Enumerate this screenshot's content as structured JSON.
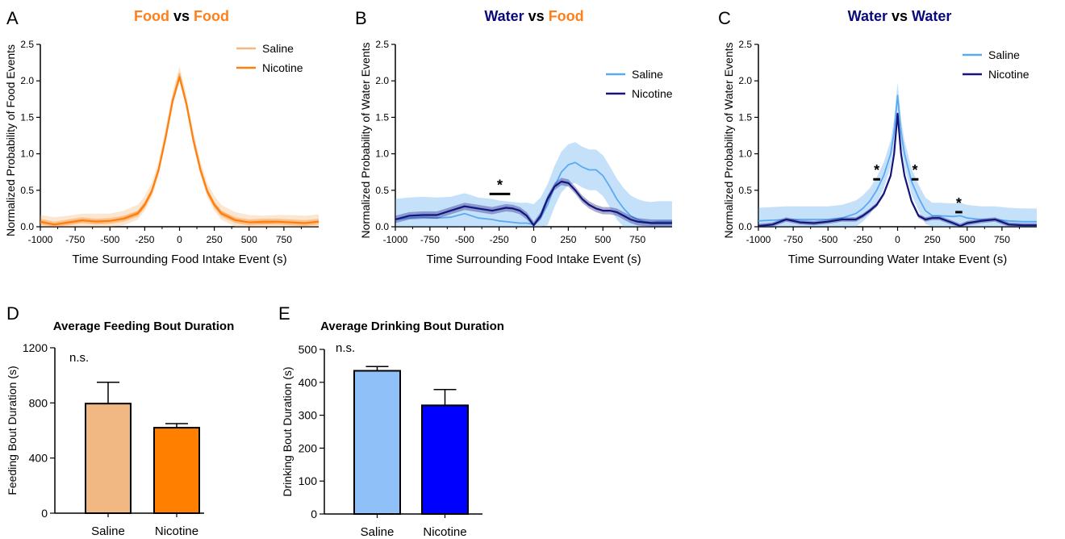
{
  "colors": {
    "food_saline": "#f4b77e",
    "food_nicotine": "#ff7f0e",
    "water_saline": "#5aa9f2",
    "water_nicotine": "#14147a",
    "title_water": "#0a0a7a",
    "title_food": "#ff7f1a",
    "bar_saline_food": "#f2b883",
    "bar_nicotine_food": "#ff7f00",
    "bar_saline_water": "#8fc0f7",
    "bar_nicotine_water": "#0000ff"
  },
  "chart_data": [
    {
      "panel": "A",
      "type": "line",
      "title_parts": [
        {
          "text": "Food",
          "color": "title_food"
        },
        {
          "text": " vs ",
          "color": "black"
        },
        {
          "text": "Food",
          "color": "title_food"
        }
      ],
      "xlabel": "Time Surrounding Food Intake Event (s)",
      "ylabel": "Normalized Probability of Food Events",
      "xlim": [
        -1000,
        1000
      ],
      "ylim": [
        0,
        2.5
      ],
      "xticks": [
        "-1000",
        "-750",
        "-500",
        "-250",
        "0",
        "250",
        "500",
        "750"
      ],
      "yticks": [
        "0.0",
        "0.5",
        "1.0",
        "1.5",
        "2.0",
        "2.5"
      ],
      "legend": "top-right",
      "series": [
        {
          "name": "Saline",
          "color": "food_saline",
          "error": 0.1,
          "x": [
            -1000,
            -900,
            -800,
            -700,
            -600,
            -500,
            -400,
            -300,
            -250,
            -200,
            -150,
            -100,
            -50,
            0,
            50,
            100,
            150,
            200,
            250,
            300,
            400,
            500,
            600,
            700,
            800,
            900,
            1000
          ],
          "y": [
            0.06,
            0.03,
            0.05,
            0.08,
            0.08,
            0.08,
            0.12,
            0.2,
            0.32,
            0.5,
            0.8,
            1.25,
            1.75,
            2.1,
            1.7,
            1.2,
            0.8,
            0.5,
            0.32,
            0.2,
            0.1,
            0.06,
            0.05,
            0.06,
            0.06,
            0.05,
            0.07
          ]
        },
        {
          "name": "Nicotine",
          "color": "food_nicotine",
          "error": 0.04,
          "x": [
            -1000,
            -900,
            -800,
            -700,
            -600,
            -500,
            -400,
            -300,
            -250,
            -200,
            -150,
            -100,
            -50,
            0,
            50,
            100,
            150,
            200,
            250,
            300,
            400,
            500,
            600,
            700,
            800,
            900,
            1000
          ],
          "y": [
            0.07,
            0.03,
            0.06,
            0.09,
            0.07,
            0.08,
            0.11,
            0.18,
            0.3,
            0.48,
            0.78,
            1.22,
            1.72,
            2.05,
            1.68,
            1.18,
            0.78,
            0.48,
            0.3,
            0.18,
            0.09,
            0.06,
            0.07,
            0.07,
            0.06,
            0.05,
            0.07
          ]
        }
      ],
      "annotations": []
    },
    {
      "panel": "B",
      "type": "line",
      "title_parts": [
        {
          "text": "Water",
          "color": "title_water"
        },
        {
          "text": " vs ",
          "color": "black"
        },
        {
          "text": "Food",
          "color": "title_food"
        }
      ],
      "xlabel": "Time Surrounding Food Intake Event (s)",
      "ylabel": "Normalized Probability of Water Events",
      "xlim": [
        -1000,
        1000
      ],
      "ylim": [
        0,
        2.5
      ],
      "xticks": [
        "-1000",
        "-750",
        "-500",
        "-250",
        "0",
        "250",
        "500",
        "750"
      ],
      "yticks": [
        "0.0",
        "0.5",
        "1.0",
        "1.5",
        "2.0",
        "2.5"
      ],
      "legend": "top-right",
      "series": [
        {
          "name": "Saline",
          "color": "water_saline",
          "error": 0.28,
          "x": [
            -1000,
            -900,
            -800,
            -700,
            -600,
            -500,
            -400,
            -300,
            -250,
            -200,
            -150,
            -100,
            -50,
            0,
            50,
            100,
            150,
            200,
            250,
            300,
            350,
            400,
            450,
            500,
            550,
            600,
            650,
            700,
            750,
            800,
            850,
            900,
            1000
          ],
          "y": [
            0.1,
            0.12,
            0.13,
            0.12,
            0.13,
            0.18,
            0.12,
            0.1,
            0.08,
            0.07,
            0.06,
            0.05,
            0.05,
            0.03,
            0.12,
            0.3,
            0.55,
            0.75,
            0.85,
            0.88,
            0.82,
            0.78,
            0.78,
            0.7,
            0.55,
            0.38,
            0.25,
            0.15,
            0.1,
            0.07,
            0.06,
            0.07,
            0.07
          ]
        },
        {
          "name": "Nicotine",
          "color": "water_nicotine",
          "error": 0.05,
          "x": [
            -1000,
            -900,
            -800,
            -700,
            -600,
            -500,
            -400,
            -300,
            -250,
            -200,
            -150,
            -100,
            -50,
            0,
            50,
            100,
            150,
            200,
            250,
            300,
            350,
            400,
            450,
            500,
            550,
            600,
            650,
            700,
            750,
            800,
            850,
            900,
            1000
          ],
          "y": [
            0.1,
            0.15,
            0.16,
            0.16,
            0.22,
            0.28,
            0.25,
            0.22,
            0.24,
            0.26,
            0.25,
            0.22,
            0.15,
            0.02,
            0.15,
            0.38,
            0.55,
            0.62,
            0.6,
            0.5,
            0.38,
            0.3,
            0.25,
            0.22,
            0.22,
            0.2,
            0.15,
            0.1,
            0.07,
            0.06,
            0.05,
            0.05,
            0.05
          ]
        }
      ],
      "annotations": [
        {
          "text": "*",
          "x": -245,
          "y": 0.55,
          "bar": [
            -320,
            -170
          ]
        }
      ]
    },
    {
      "panel": "C",
      "type": "line",
      "title_parts": [
        {
          "text": "Water",
          "color": "title_water"
        },
        {
          "text": " vs ",
          "color": "black"
        },
        {
          "text": "Water",
          "color": "title_water"
        }
      ],
      "xlabel": "Time Surrounding Water Intake Event (s)",
      "ylabel": "Normalized Probability of Water Events",
      "xlim": [
        -1000,
        1000
      ],
      "ylim": [
        0,
        2.5
      ],
      "xticks": [
        "-1000",
        "-750",
        "-500",
        "-250",
        "0",
        "250",
        "500",
        "750"
      ],
      "yticks": [
        "0.0",
        "0.5",
        "1.0",
        "1.5",
        "2.0",
        "2.5"
      ],
      "legend": "top-right",
      "series": [
        {
          "name": "Saline",
          "color": "water_saline",
          "error": 0.18,
          "x": [
            -1000,
            -900,
            -800,
            -700,
            -600,
            -500,
            -400,
            -300,
            -250,
            -200,
            -150,
            -100,
            -50,
            -25,
            0,
            25,
            50,
            100,
            150,
            200,
            250,
            300,
            400,
            450,
            500,
            600,
            700,
            800,
            900,
            1000
          ],
          "y": [
            0.08,
            0.09,
            0.1,
            0.1,
            0.1,
            0.1,
            0.12,
            0.18,
            0.25,
            0.35,
            0.5,
            0.7,
            1.0,
            1.3,
            1.8,
            1.3,
            1.0,
            0.62,
            0.4,
            0.22,
            0.15,
            0.15,
            0.14,
            0.15,
            0.12,
            0.1,
            0.1,
            0.08,
            0.07,
            0.07
          ]
        },
        {
          "name": "Nicotine",
          "color": "water_nicotine",
          "error": 0.03,
          "x": [
            -1000,
            -900,
            -800,
            -700,
            -600,
            -500,
            -400,
            -300,
            -250,
            -200,
            -150,
            -100,
            -50,
            -25,
            0,
            25,
            50,
            100,
            150,
            200,
            250,
            300,
            400,
            450,
            500,
            600,
            700,
            800,
            900,
            1000
          ],
          "y": [
            0.01,
            0.03,
            0.1,
            0.06,
            0.05,
            0.07,
            0.1,
            0.1,
            0.15,
            0.22,
            0.3,
            0.45,
            0.7,
            1.0,
            1.55,
            1.0,
            0.7,
            0.35,
            0.15,
            0.1,
            0.12,
            0.12,
            0.05,
            0.01,
            0.05,
            0.08,
            0.1,
            0.03,
            0.02,
            0.02
          ]
        }
      ],
      "annotations": [
        {
          "text": "*",
          "x": -150,
          "y": 0.75,
          "bar": [
            -175,
            -125
          ]
        },
        {
          "text": "*",
          "x": 125,
          "y": 0.75,
          "bar": [
            100,
            150
          ]
        },
        {
          "text": "*",
          "x": 440,
          "y": 0.3,
          "bar": [
            415,
            465
          ]
        }
      ]
    },
    {
      "panel": "D",
      "type": "bar",
      "title": "Average Feeding Bout Duration",
      "ylabel": "Feeding Bout Duration (s)",
      "categories": [
        "Saline",
        "Nicotine"
      ],
      "values": [
        795,
        620
      ],
      "errors": [
        155,
        30
      ],
      "colors": [
        "bar_saline_food",
        "bar_nicotine_food"
      ],
      "ylim": [
        0,
        1200
      ],
      "yticks": [
        "0",
        "400",
        "800",
        "1200"
      ],
      "annotation": "n.s."
    },
    {
      "panel": "E",
      "type": "bar",
      "title": "Average Drinking Bout Duration",
      "ylabel": "Drinking Bout Duration (s)",
      "categories": [
        "Saline",
        "Nicotine"
      ],
      "values": [
        435,
        330
      ],
      "errors": [
        13,
        48
      ],
      "colors": [
        "bar_saline_water",
        "bar_nicotine_water"
      ],
      "ylim": [
        0,
        500
      ],
      "yticks": [
        "0",
        "100",
        "200",
        "300",
        "400",
        "500"
      ],
      "annotation": "n.s."
    }
  ]
}
